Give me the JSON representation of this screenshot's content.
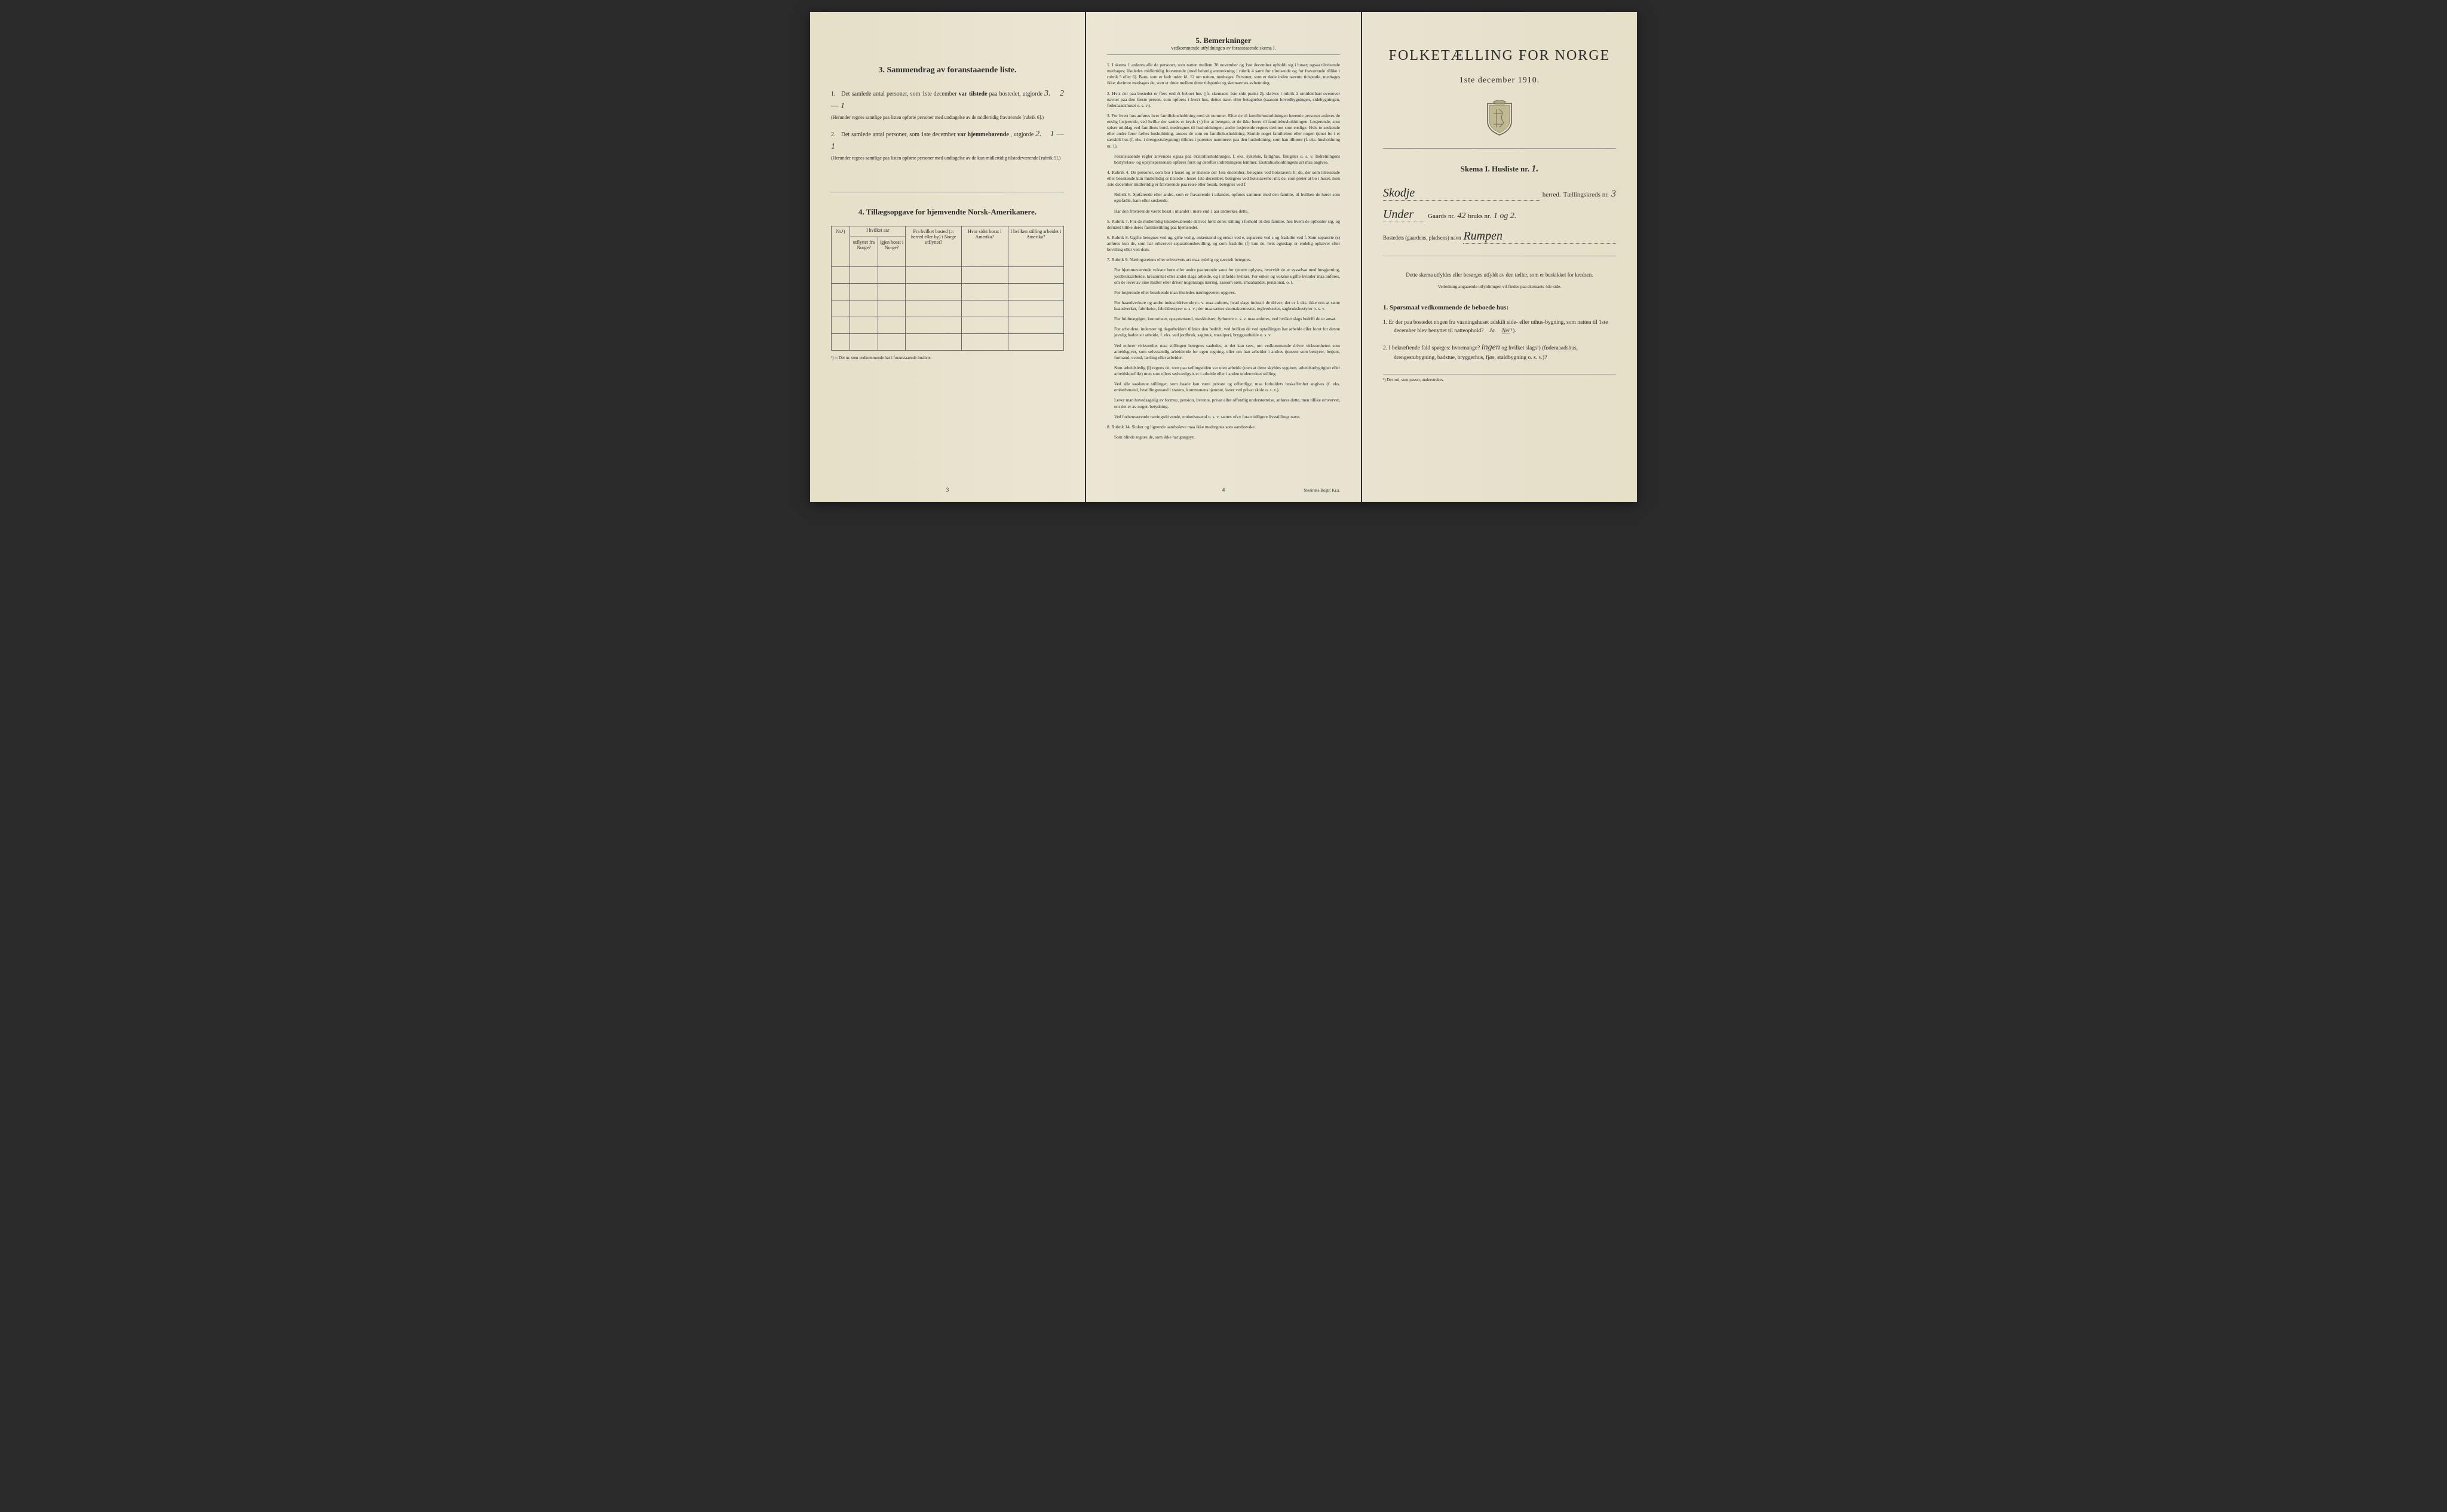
{
  "page1": {
    "section3": {
      "title": "3.  Sammendrag av foranstaaende liste.",
      "item1_prefix": "1.",
      "item1_text_a": "Det samlede antal personer, som 1ste december ",
      "item1_bold": "var tilstede",
      "item1_text_b": " paa bostedet, utgjorde ",
      "item1_value": "3.",
      "item1_handwritten": "2 — 1",
      "item1_note": "(Herunder regnes samtlige paa listen opførte personer med undtagelse av de midlertidig fraværende [rubrik 6].)",
      "item2_prefix": "2.",
      "item2_text_a": "Det samlede antal personer, som 1ste december ",
      "item2_bold": "var hjemmehørende",
      "item2_text_b": ", utgjorde ",
      "item2_value": "2.",
      "item2_handwritten": "1 — 1",
      "item2_note": "(Herunder regnes samtlige paa listen opførte personer med undtagelse av de kun midlertidig tilstedeværende [rubrik 5].)"
    },
    "section4": {
      "title": "4.  Tillægsopgave for hjemvendte Norsk-Amerikanere.",
      "table": {
        "headers": {
          "col1": "Nr.¹)",
          "col2_group": "I hvilket aar",
          "col2a": "utflyttet fra Norge?",
          "col2b": "igjen bosat i Norge?",
          "col3": "Fra hvilket bosted (ɔ: herred eller by) i Norge utflyttet?",
          "col4": "Hvor sidst bosat i Amerika?",
          "col5": "I hvilken stilling arbeidet i Amerika?"
        }
      },
      "footnote": "¹) ɔ: Det nr. som vedkommende har i foranstaaende husliste."
    },
    "page_num": "3"
  },
  "page2": {
    "title": "5.  Bemerkninger",
    "subtitle": "vedkommende utfyldningen av foranstaaende skema I.",
    "items": [
      "1. I skema 1 anføres alle de personer, som natten mellem 30 november og 1ste december opholdt sig i huset; ogsaa tilreisende medtages; likeledes midlertidig fraværende (med behørig anmerkning i rubrik 4 samt for tilreisende og for fraværende tillike i rubrik 5 eller 6). Barn, som er født inden kl. 12 om natten, medtages. Personer, som er døde inden nævnte tidspunkt, medtages ikke; derimot medtages de, som er døde mellem dette tidspunkt og skemaernes avhentning.",
      "2. Hvis der paa bostedet er flere end ét beboet hus (jfr. skemaets 1ste side punkt 2), skrives i rubrik 2 umiddelbart ovenover navnet paa den første person, som opføres i hvert hus, dettes navn eller betegnelse (saasom hovedbygningen, sidebygningen, føderaaadshuset o. s. v.).",
      "3. For hvert hus anføres hver familiehusholdning med sit nummer. Efter de til familiehusholdningen hørende personer anføres de enslig losjerende, ved hvilke der sættes et kryds (×) for at betegne, at de ikke hører til familiehusholdningen. Losjerende, som spiser middag ved familiens bord, medregnes til husholdningen; andre losjerende regnes derimot som enslige. Hvis to søskende eller andre fører fælles husholdning, ansees de som en familiehusholdning. Skulde noget familielem eller nogen tjener bo i et særskilt hus (f. eks. i drengestubygning) tilføies i parentes nummeret paa den husholdning, som han tilhører (f. eks. husholdning nr. 1).",
      "Foranstaaende regler anvendes ogsaa paa ekstrahusholdninger, f. eks. sykehus, fattighus, fængsler o. s. v. Indretningens bestyrelses- og opsynspersonale opføres først og derefter indretningens lemmer. Ekstrahusholdningens art maa angives.",
      "4. Rubrik 4. De personer, som bor i huset og er tilstede der 1ste december, betegnes ved bokstaven: b; de, der som tilreisende eller besøkende kun midlertidig er tilstede i huset 1ste december, betegnes ved bokstaverne: mt; de, som pleier at bo i huset, men 1ste december midlertidig er fraværende paa reise eller besøk, betegnes ved f.",
      "Rubrik 6. Sjøfarende eller andre, som er fraværende i utlandet, opføres sammen med den familie, til hvilken de hører som egtefælle, barn eller søskende.",
      "Har den fraværende været bosat i utlandet i mere end 1 aar anmerkes dette.",
      "5. Rubrik 7. For de midlertidig tilstedeværende skrives først deres stilling i forhold til den familie, hos hvem de opholder sig, og dernæst tillike deres familiestilling paa hjemstedet.",
      "6. Rubrik 8. Ugifte betegnes ved ug, gifte ved g, enkemænd og enker ved e, separerte ved s og fraskilte ved f. Som separerte (s) anføres kun de, som har erhvervet separationsbevilling, og som fraskilte (f) kun de, hvis egteskap er endelig ophævet efter bevilling eller ved dom.",
      "7. Rubrik 9. Næringsveiens eller erhvervets art maa tydelig og specielt betegnes.",
      "For hjemmeværende voksne børn eller andre paarørende samt for tjenere oplyses, hvorvidt de er sysselsat med husgjerning, jordbruksarbeide, kreaturstel eller andet slags arbeide, og i tilfælde hvilket. For enker og voksne ugifte kvinder maa anføres, om de lever av sine midler eller driver nogenslags næring, saasom søm, smaahandel, pensionat, o. l.",
      "For losjerende eller besøkende maa likeledes næringsveien opgives.",
      "For haandverkere og andre industridrivende m. v. maa anføres, hvad slags industri de driver; det er f. eks. ikke nok at sætte haandverker, fabrikeier, fabrikbestyrer o. s. v.; der maa sættes skomakermester, teglverkseier, sagbruksbestyrer o. s. v.",
      "For fuldmægtiger, kontorister, opsynsmænd, maskinister, fyrbøtere o. s. v. maa anføres, ved hvilket slags bedrift de er ansat.",
      "For arbeidere, inderster og dagarbeidere tilføies den bedrift, ved hvilken de ved optællingen har arbeide eller forut for denne jevnlig hadde sit arbeide, f. eks. ved jordbruk, sagbruk, træsliperi, bryggearbeide o. s. v.",
      "Ved enhver virksomhet maa stillingen betegnes saaledes, at det kan sees, om vedkommende driver virksomheten som arbeidsgiver, som selvstændig arbeidende for egen regning, eller om han arbeider i andres tjeneste som bestyrer, betjent, formand, svend, lærling eller arbeider.",
      "Som arbeidsledig (l) regnes de, som paa tællingstiden var uten arbeide (uten at dette skyldes sygdom, arbeidsudygtighet eller arbeidskonflikt) men som ellers sedvanligvis er i arbeide eller i anden underordnet stilling.",
      "Ved alle saadanne stillinger, som baade kan være private og offentlige, maa forholdets beskaffenhet angives (f. eks. embedsmand, bestillingsmand i statens, kommunens tjeneste, lærer ved privat skole o. s. v.).",
      "Lever man hovedsagelig av formue, pension, livrente, privat eller offentlig understøttelse, anføres dette, men tillike erhvervet, om det er av nogen betydning.",
      "Ved forhenværende næringsdrivende, embedsmænd o. s. v. sættes «fv» foran tidligere livsstillings navn.",
      "8. Rubrik 14. Sinker og lignende aandssløve maa ikke medregnes som aandssvake.",
      "Som blinde regnes de, som ikke har gangsyn."
    ],
    "page_num": "4",
    "printer": "Steen'ske Bogtr. Kr.a."
  },
  "page3": {
    "main_title": "FOLKETÆLLING FOR NORGE",
    "date": "1ste december 1910.",
    "skema_label": "Skema I.  Husliste nr.",
    "husliste_nr": "1.",
    "herred_value": "Skodje",
    "herred_label": "herred.",
    "taellingskreds_label": "Tællingskreds nr.",
    "taellingskreds_nr": "3",
    "under_label": "Under",
    "gaards_label": "Gaards nr.",
    "gaards_nr": "42",
    "bruks_label": "bruks nr.",
    "bruks_nr": "1 og 2.",
    "bosted_label": "Bostedets (gaardens, pladsens) navn",
    "bosted_value": "Rumpen",
    "instructions": "Dette skema utfyldes eller besørges utfyldt av den tæller, som er beskikket for kredsen.",
    "instructions_sub": "Veiledning angaaende utfyldningen vil findes paa skemaets 4de side.",
    "q1_title": "1. Spørsmaal vedkommende de beboede hus:",
    "q1_1": "1. Er der paa bostedet nogen fra vaaningshuset adskilt side- eller uthus-bygning, som natten til 1ste december blev benyttet til natteophold?",
    "q1_1_ja": "Ja.",
    "q1_1_nei": "Nei",
    "q1_1_sup": "¹).",
    "q1_2": "2. I bekræftende fald spørges: hvormange?",
    "q1_2_hw": "ingen",
    "q1_2_b": "og hvilket slags¹) (føderaaadshus, drengestubygning, badstue, bryggerhus, fjøs, staldbygning o. s. v.)?",
    "footnote": "¹) Det ord, som passer, understrekes."
  },
  "colors": {
    "paper": "#e8e2d0",
    "text": "#2a2a2a",
    "border": "#666666",
    "background": "#2a2a2a"
  }
}
